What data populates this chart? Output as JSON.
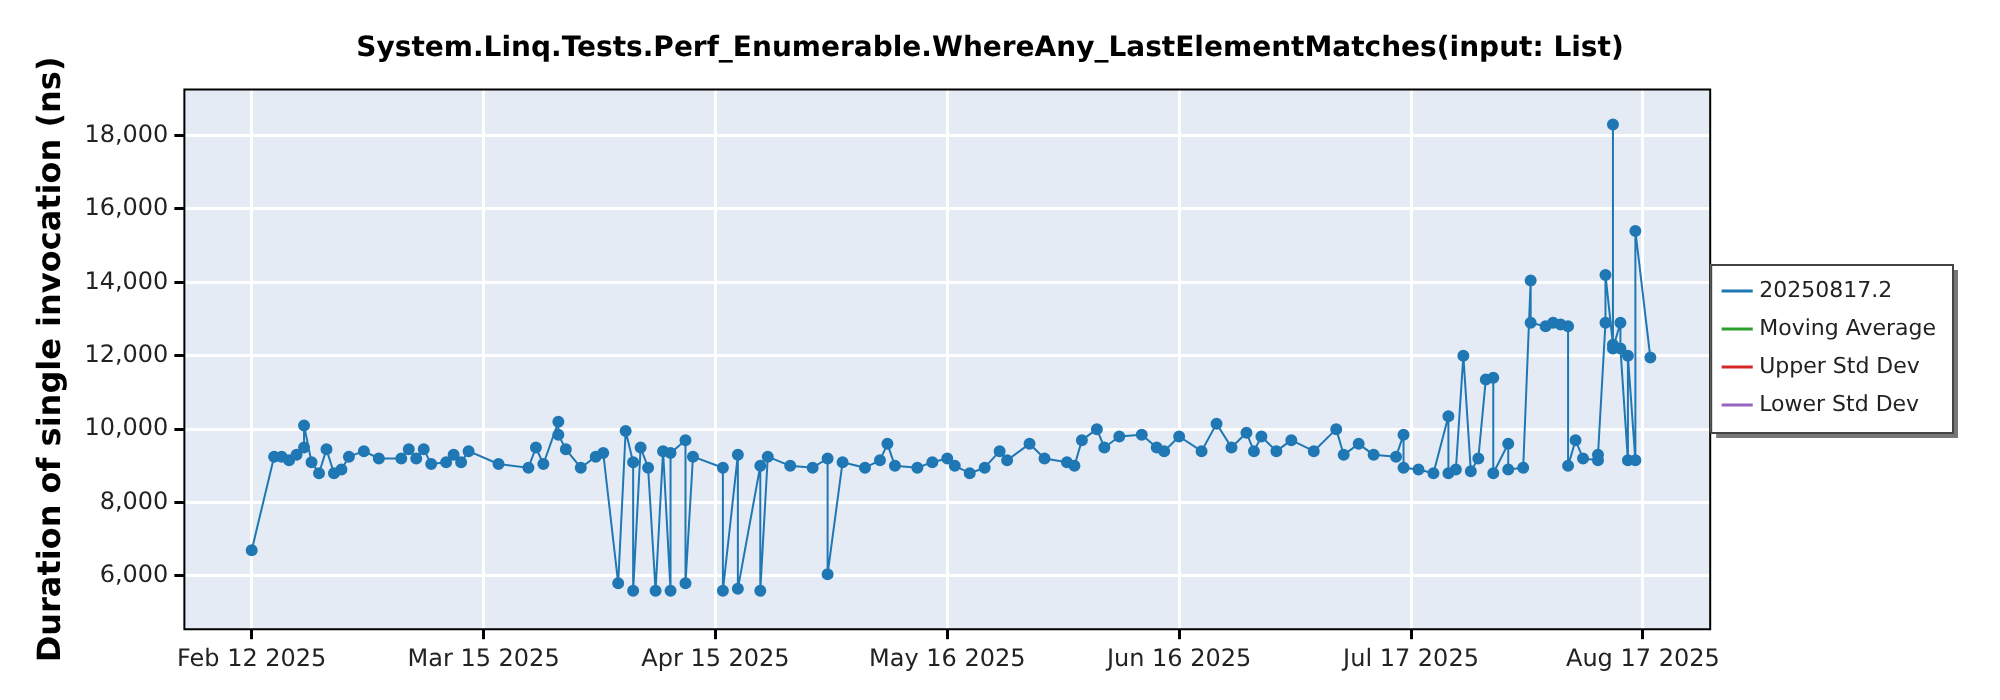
{
  "chart_data": {
    "type": "line",
    "title": "System.Linq.Tests.Perf_Enumerable.WhereAny_LastElementMatches(input: List)",
    "ylabel": "Duration of single invocation (ns)",
    "xlim": [
      "2025-02-03",
      "2025-08-26"
    ],
    "xticks": [
      {
        "value": "2025-02-12",
        "label": "Feb 12 2025"
      },
      {
        "value": "2025-03-15",
        "label": "Mar 15 2025"
      },
      {
        "value": "2025-04-15",
        "label": "Apr 15 2025"
      },
      {
        "value": "2025-05-16",
        "label": "May 16 2025"
      },
      {
        "value": "2025-06-16",
        "label": "Jun 16 2025"
      },
      {
        "value": "2025-07-17",
        "label": "Jul 17 2025"
      },
      {
        "value": "2025-08-17",
        "label": "Aug 17 2025"
      }
    ],
    "ylim": [
      4550,
      19250
    ],
    "yticks": [
      {
        "value": 6000,
        "label": "6,000"
      },
      {
        "value": 8000,
        "label": "8,000"
      },
      {
        "value": 10000,
        "label": "10,000"
      },
      {
        "value": 12000,
        "label": "12,000"
      },
      {
        "value": 14000,
        "label": "14,000"
      },
      {
        "value": 16000,
        "label": "16,000"
      },
      {
        "value": 18000,
        "label": "18,000"
      }
    ],
    "grid": true,
    "legend": "right",
    "marker": "circle",
    "line_style": "solid",
    "series": [
      {
        "name": "20250817.2",
        "color": "#1f77b4",
        "x": [
          "2025-02-12",
          "2025-02-15",
          "2025-02-16",
          "2025-02-17",
          "2025-02-18",
          "2025-02-19",
          "2025-02-19",
          "2025-02-20",
          "2025-02-21",
          "2025-02-22",
          "2025-02-23",
          "2025-02-24",
          "2025-02-25",
          "2025-02-27",
          "2025-03-01",
          "2025-03-04",
          "2025-03-05",
          "2025-03-06",
          "2025-03-07",
          "2025-03-08",
          "2025-03-10",
          "2025-03-11",
          "2025-03-12",
          "2025-03-13",
          "2025-03-17",
          "2025-03-21",
          "2025-03-22",
          "2025-03-23",
          "2025-03-25",
          "2025-03-25",
          "2025-03-26",
          "2025-03-28",
          "2025-03-30",
          "2025-03-31",
          "2025-04-02",
          "2025-04-03",
          "2025-04-04",
          "2025-04-04",
          "2025-04-05",
          "2025-04-06",
          "2025-04-07",
          "2025-04-08",
          "2025-04-09",
          "2025-04-09",
          "2025-04-11",
          "2025-04-11",
          "2025-04-12",
          "2025-04-16",
          "2025-04-16",
          "2025-04-18",
          "2025-04-18",
          "2025-04-21",
          "2025-04-21",
          "2025-04-22",
          "2025-04-25",
          "2025-04-28",
          "2025-04-30",
          "2025-04-30",
          "2025-05-02",
          "2025-05-05",
          "2025-05-07",
          "2025-05-08",
          "2025-05-09",
          "2025-05-12",
          "2025-05-14",
          "2025-05-16",
          "2025-05-17",
          "2025-05-19",
          "2025-05-21",
          "2025-05-23",
          "2025-05-24",
          "2025-05-27",
          "2025-05-29",
          "2025-06-01",
          "2025-06-02",
          "2025-06-03",
          "2025-06-05",
          "2025-06-06",
          "2025-06-08",
          "2025-06-11",
          "2025-06-13",
          "2025-06-14",
          "2025-06-16",
          "2025-06-19",
          "2025-06-21",
          "2025-06-23",
          "2025-06-25",
          "2025-06-26",
          "2025-06-27",
          "2025-06-29",
          "2025-07-01",
          "2025-07-04",
          "2025-07-07",
          "2025-07-08",
          "2025-07-10",
          "2025-07-12",
          "2025-07-15",
          "2025-07-16",
          "2025-07-16",
          "2025-07-18",
          "2025-07-20",
          "2025-07-22",
          "2025-07-22",
          "2025-07-23",
          "2025-07-24",
          "2025-07-25",
          "2025-07-26",
          "2025-07-27",
          "2025-07-28",
          "2025-07-28",
          "2025-07-30",
          "2025-07-30",
          "2025-08-01",
          "2025-08-02",
          "2025-08-02",
          "2025-08-04",
          "2025-08-05",
          "2025-08-06",
          "2025-08-07",
          "2025-08-07",
          "2025-08-08",
          "2025-08-09",
          "2025-08-11",
          "2025-08-11",
          "2025-08-12",
          "2025-08-12",
          "2025-08-13",
          "2025-08-13",
          "2025-08-13",
          "2025-08-14",
          "2025-08-14",
          "2025-08-15",
          "2025-08-15",
          "2025-08-16",
          "2025-08-16",
          "2025-08-18"
        ],
        "values": [
          6700,
          9250,
          9250,
          9150,
          9300,
          9500,
          10100,
          9100,
          8800,
          9450,
          8800,
          8900,
          9250,
          9400,
          9200,
          9200,
          9450,
          9200,
          9450,
          9050,
          9100,
          9300,
          9100,
          9400,
          9050,
          8950,
          9500,
          9050,
          10200,
          9850,
          9450,
          8950,
          9250,
          9350,
          5800,
          9950,
          9100,
          5600,
          9500,
          8950,
          5600,
          9400,
          5600,
          9350,
          9700,
          5800,
          9250,
          8950,
          5600,
          9300,
          5650,
          9000,
          5600,
          9250,
          9000,
          8950,
          9200,
          6050,
          9100,
          8950,
          9150,
          9600,
          9000,
          8950,
          9100,
          9200,
          9000,
          8800,
          8950,
          9400,
          9150,
          9600,
          9200,
          9100,
          9000,
          9700,
          10000,
          9500,
          9800,
          9850,
          9500,
          9400,
          9800,
          9400,
          10150,
          9500,
          9900,
          9400,
          9800,
          9400,
          9700,
          9400,
          10000,
          9300,
          9600,
          9300,
          9250,
          9850,
          8950,
          8900,
          8800,
          10350,
          8800,
          8900,
          12000,
          8850,
          9200,
          11350,
          11400,
          8800,
          9600,
          8900,
          8950,
          14050,
          12900,
          12800,
          12900,
          12850,
          12800,
          9000,
          9700,
          9200,
          9150,
          9300,
          12900,
          14200,
          12300,
          18300,
          12200,
          12900,
          12200,
          9150,
          12000,
          9150,
          15400,
          11950
        ]
      },
      {
        "name": "Moving Average",
        "color": "#2ca02c"
      },
      {
        "name": "Upper Std Dev",
        "color": "#d62728"
      },
      {
        "name": "Lower Std Dev",
        "color": "#9467bd"
      }
    ]
  }
}
